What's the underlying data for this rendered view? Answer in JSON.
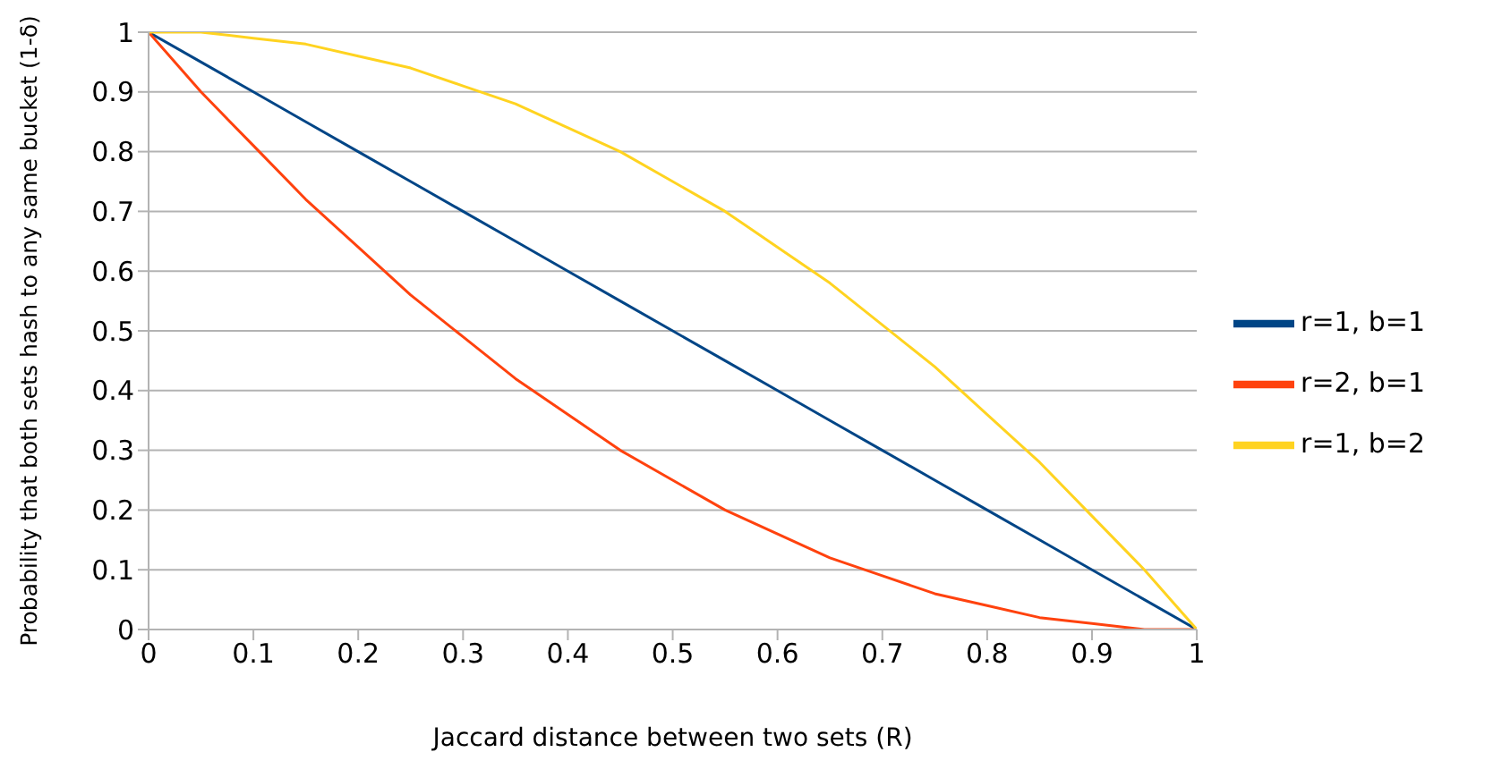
{
  "chart_data": {
    "type": "line",
    "xlabel": "Jaccard distance between two sets (R)",
    "ylabel": "Probability that both sets hash to any same bucket (1-δ)",
    "xlim": [
      0,
      1
    ],
    "xticks": [
      0,
      0.1,
      0.2,
      0.3,
      0.4,
      0.5,
      0.6,
      0.7,
      0.8,
      0.9,
      1
    ],
    "ylim": [
      0,
      1
    ],
    "yticks": [
      0,
      0.1,
      0.2,
      0.3,
      0.4,
      0.5,
      0.6,
      0.7,
      0.8,
      0.9,
      1
    ],
    "grid": "y",
    "legend": "right",
    "marker": "none",
    "line_style": "solid",
    "x": [
      0,
      0.05,
      0.1,
      0.15,
      0.2,
      0.25,
      0.3,
      0.35,
      0.4,
      0.45,
      0.5,
      0.55,
      0.6,
      0.65,
      0.7,
      0.75,
      0.8,
      0.85,
      0.9,
      0.95,
      1
    ],
    "series": [
      {
        "name": "r=1, b=1",
        "color": "#004586",
        "values": [
          1,
          0.95,
          0.9,
          0.85,
          0.8,
          0.75,
          0.7,
          0.65,
          0.6,
          0.55,
          0.5,
          0.45,
          0.4,
          0.35,
          0.3,
          0.25,
          0.2,
          0.15,
          0.1,
          0.05,
          0
        ]
      },
      {
        "name": "r=2, b=1",
        "color": "#ff420e",
        "values": [
          1,
          0.9,
          0.81,
          0.72,
          0.64,
          0.56,
          0.49,
          0.42,
          0.36,
          0.3,
          0.25,
          0.2,
          0.16,
          0.12,
          0.09,
          0.06,
          0.04,
          0.02,
          0.01,
          0,
          0
        ]
      },
      {
        "name": "r=1, b=2",
        "color": "#ffd320",
        "values": [
          1,
          1,
          0.99,
          0.98,
          0.96,
          0.94,
          0.91,
          0.88,
          0.84,
          0.8,
          0.75,
          0.7,
          0.64,
          0.58,
          0.51,
          0.44,
          0.36,
          0.28,
          0.19,
          0.1,
          0
        ]
      }
    ]
  }
}
